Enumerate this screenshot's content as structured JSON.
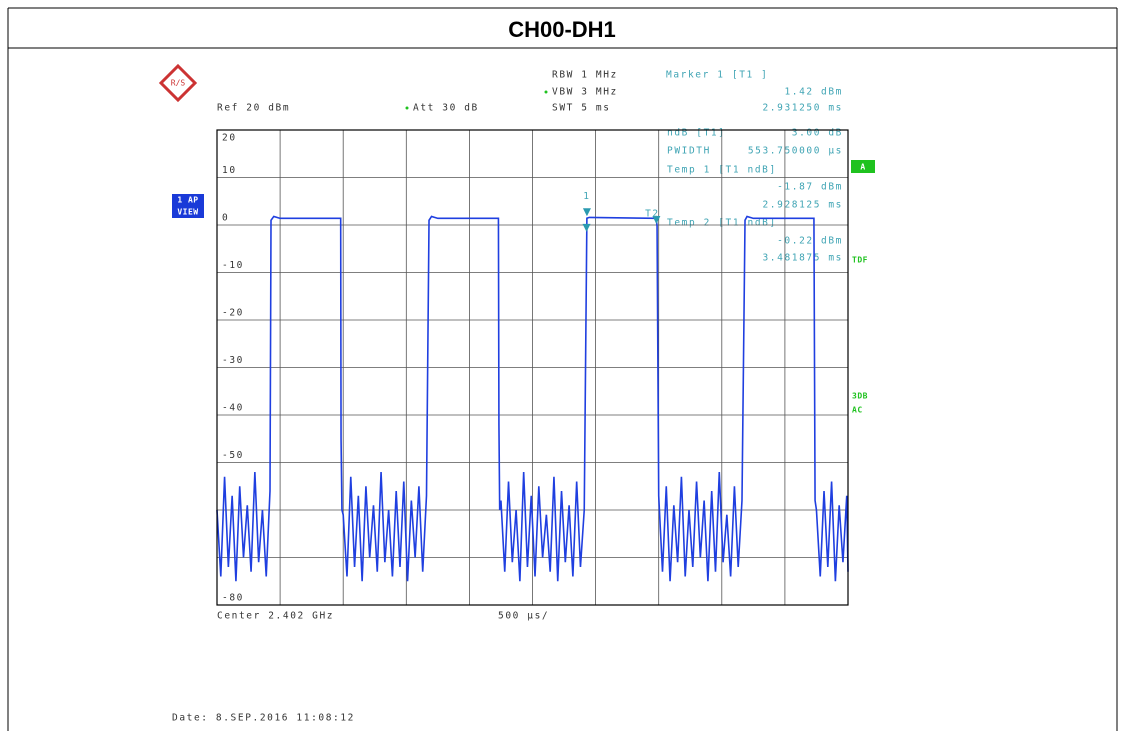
{
  "title": "CH00-DH1",
  "settings": {
    "rbw": "RBW 1 MHz",
    "vbw": "VBW 3 MHz",
    "swt": "SWT 5 ms",
    "ref": "Ref 20 dBm",
    "att": "Att 30 dB",
    "center": "Center 2.402 GHz",
    "span": "500 µs/"
  },
  "marker_info": [
    "Marker 1 [T1 ]",
    "1.42 dBm",
    "2.931250 ms"
  ],
  "ndb_info": [
    "ndB [T1]",
    "3.00 dB",
    "PWIDTH",
    "553.750000 µs",
    "Temp 1 [T1 ndB]",
    "-1.87 dBm",
    "2.928125 ms",
    "Temp 2 [T1 ndB]",
    "-0.22 dBm",
    "3.481875 ms"
  ],
  "side_labels": [
    "1 AP",
    "VIEW",
    "A",
    "TDF",
    "3DB",
    "AC"
  ],
  "date": "Date: 8.SEP.2016 11:08:12",
  "chart_data": {
    "type": "line",
    "xlim": [
      0,
      5
    ],
    "ylim": [
      -80,
      20
    ],
    "grid": true,
    "color": "#1f3fe0",
    "yticks": [
      20,
      10,
      0,
      -10,
      -20,
      -30,
      -40,
      -50,
      {
        "value": -60,
        "label": null
      },
      {
        "value": -70,
        "label": null
      },
      -80
    ],
    "xticks": [
      {
        "value": 0.5,
        "label": null
      },
      {
        "value": 1,
        "label": null
      },
      {
        "value": 1.5,
        "label": null
      },
      {
        "value": 2,
        "label": null
      },
      {
        "value": 2.5,
        "label": null
      },
      {
        "value": 3,
        "label": null
      },
      {
        "value": 3.5,
        "label": null
      },
      {
        "value": 4,
        "label": null
      },
      {
        "value": 4.5,
        "label": null
      }
    ],
    "markers": [
      {
        "label": "1",
        "x": 2.93125,
        "y": 1.42
      },
      {
        "label": "T2",
        "x": 3.481875,
        "y": -0.22
      },
      {
        "x": 2.928125,
        "y": -1.87
      }
    ],
    "x": [
      0,
      0.03,
      0.06,
      0.09,
      0.12,
      0.15,
      0.18,
      0.21,
      0.24,
      0.27,
      0.3,
      0.33,
      0.36,
      0.39,
      0.42,
      0.428,
      0.45,
      0.5,
      0.98,
      0.983,
      0.99,
      1.0,
      1.03,
      1.06,
      1.09,
      1.12,
      1.15,
      1.18,
      1.21,
      1.24,
      1.27,
      1.3,
      1.33,
      1.36,
      1.39,
      1.42,
      1.45,
      1.48,
      1.51,
      1.54,
      1.57,
      1.6,
      1.63,
      1.66,
      1.68,
      1.7,
      1.75,
      2.23,
      2.234,
      2.24,
      2.25,
      2.28,
      2.31,
      2.34,
      2.37,
      2.4,
      2.43,
      2.46,
      2.49,
      2.52,
      2.55,
      2.58,
      2.61,
      2.64,
      2.67,
      2.7,
      2.73,
      2.76,
      2.79,
      2.82,
      2.85,
      2.88,
      2.91,
      2.931,
      2.95,
      3.48,
      3.487,
      3.5,
      3.53,
      3.56,
      3.59,
      3.62,
      3.65,
      3.68,
      3.71,
      3.74,
      3.77,
      3.8,
      3.83,
      3.86,
      3.89,
      3.92,
      3.95,
      3.98,
      4.01,
      4.04,
      4.07,
      4.1,
      4.13,
      4.16,
      4.184,
      4.2,
      4.25,
      4.73,
      4.739,
      4.75,
      4.78,
      4.81,
      4.84,
      4.87,
      4.9,
      4.93,
      4.96,
      4.99,
      5.0
    ],
    "values": [
      -60,
      -74,
      -53,
      -72,
      -57,
      -75,
      -55,
      -70,
      -59,
      -73,
      -52,
      -71,
      -60,
      -74,
      -56,
      1.0,
      1.8,
      1.4,
      1.4,
      -45,
      -60,
      -61,
      -74,
      -53,
      -72,
      -57,
      -75,
      -55,
      -70,
      -59,
      -73,
      -52,
      -71,
      -60,
      -74,
      -56,
      -72,
      -54,
      -75,
      -58,
      -70,
      -55,
      -73,
      -57,
      1.0,
      1.8,
      1.4,
      1.4,
      -42,
      -60,
      -58,
      -73,
      -54,
      -71,
      -60,
      -75,
      -52,
      -72,
      -57,
      -74,
      -55,
      -70,
      -61,
      -73,
      -53,
      -75,
      -56,
      -71,
      -59,
      -74,
      -54,
      -72,
      -60,
      1.42,
      1.6,
      1.4,
      -0.22,
      -57,
      -73,
      -55,
      -75,
      -59,
      -71,
      -53,
      -74,
      -60,
      -72,
      -54,
      -70,
      -58,
      -75,
      -56,
      -73,
      -52,
      -71,
      -61,
      -74,
      -55,
      -72,
      -58,
      1.0,
      1.8,
      1.4,
      1.4,
      -58,
      -60,
      -74,
      -56,
      -72,
      -54,
      -75,
      -59,
      -71,
      -57,
      -73
    ]
  }
}
